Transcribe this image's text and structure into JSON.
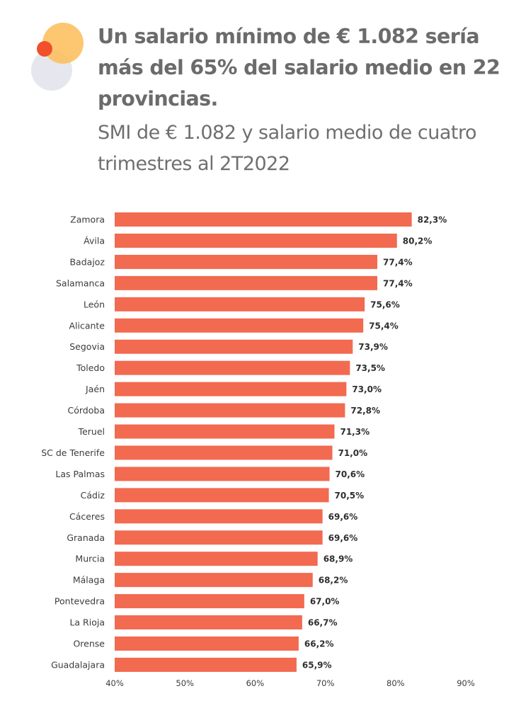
{
  "header": {
    "title": "Un salario mínimo de € 1.082 sería más del 65% del salario medio en 22 provincias.",
    "subtitle": "SMI de € 1.082 y salario medio de cuatro trimestres al 2T2022"
  },
  "logo": {
    "icon": "overlapping-circles-logo",
    "colors": {
      "grey": "#e6e6ee",
      "yellow": "#fdbf5d",
      "red": "#f0502a"
    }
  },
  "colors": {
    "bar": "#f26a50"
  },
  "chart_data": {
    "type": "bar",
    "orientation": "horizontal",
    "title": "",
    "xlabel": "",
    "ylabel": "",
    "xlim": [
      40,
      90
    ],
    "x_ticks": [
      40,
      50,
      60,
      70,
      80,
      90
    ],
    "x_tick_labels": [
      "40%",
      "50%",
      "60%",
      "70%",
      "80%",
      "90%"
    ],
    "grid": false,
    "legend": "none",
    "categories": [
      "Zamora",
      "Ávila",
      "Badajoz",
      "Salamanca",
      "León",
      "Alicante",
      "Segovia",
      "Toledo",
      "Jaén",
      "Córdoba",
      "Teruel",
      "SC de Tenerife",
      "Las Palmas",
      "Cádiz",
      "Cáceres",
      "Granada",
      "Murcia",
      "Málaga",
      "Pontevedra",
      "La Rioja",
      "Orense",
      "Guadalajara"
    ],
    "values": [
      82.3,
      80.2,
      77.4,
      77.4,
      75.6,
      75.4,
      73.9,
      73.5,
      73.0,
      72.8,
      71.3,
      71.0,
      70.6,
      70.5,
      69.6,
      69.6,
      68.9,
      68.2,
      67.0,
      66.7,
      66.2,
      65.9
    ],
    "value_labels": [
      "82,3%",
      "80,2%",
      "77,4%",
      "77,4%",
      "75,6%",
      "75,4%",
      "73,9%",
      "73,5%",
      "73,0%",
      "72,8%",
      "71,3%",
      "71,0%",
      "70,6%",
      "70,5%",
      "69,6%",
      "69,6%",
      "68,9%",
      "68,2%",
      "67,0%",
      "66,7%",
      "66,2%",
      "65,9%"
    ]
  }
}
